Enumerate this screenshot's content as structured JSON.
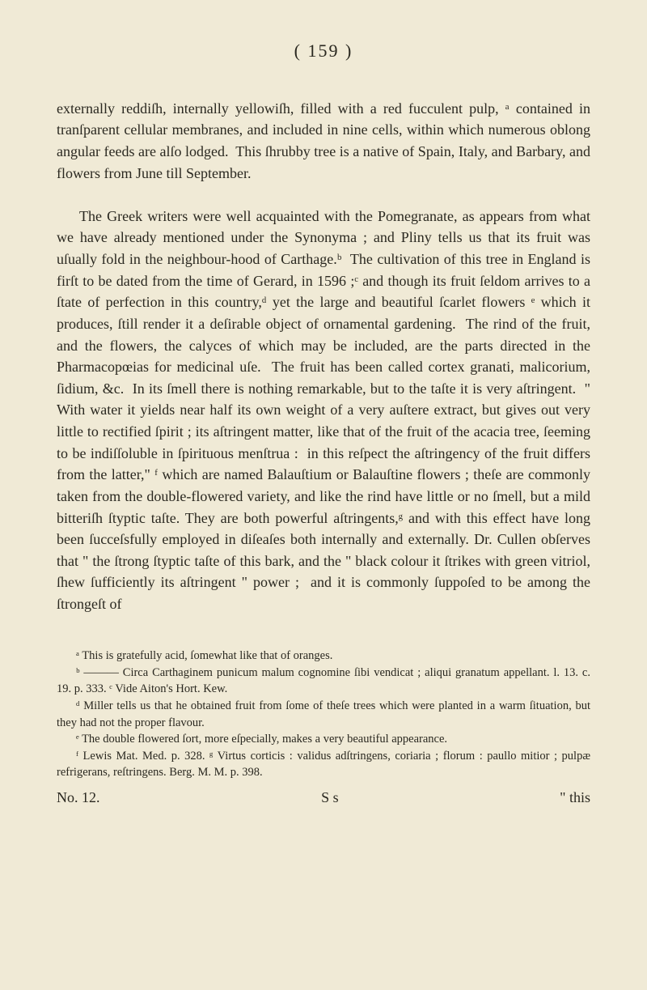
{
  "page_header": "(   159   )",
  "paragraphs": {
    "p1": "externally reddiſh, internally yellowiſh, filled with a red fucculent pulp, ᵃ contained in tranſparent cellular membranes, and included in nine cells, within which numerous oblong angular feeds are alſo lodged.  This ſhrubby tree is a native of Spain, Italy, and Barbary, and flowers from June till September.",
    "p2": "The Greek writers were well acquainted with the Pomegranate, as appears from what we have already mentioned under the Synonyma ; and Pliny tells us that its fruit was uſually fold in the neighbour-hood of Carthage.ᵇ  The cultivation of this tree in England is firſt to be dated from the time of Gerard, in 1596 ;ᶜ and though its fruit ſeldom arrives to a ſtate of perfection in this country,ᵈ yet the large and beautiful ſcarlet flowers ᵉ which it produces, ſtill render it a deſirable object of ornamental gardening.  The rind of the fruit, and the flowers, the calyces of which may be included, are the parts directed in the Pharmacopœias for medicinal uſe.  The fruit has been called cortex granati, malicorium, ſidium, &c.  In its ſmell there is nothing remarkable, but to the taſte it is very aſtringent.  \" With water it yields near half its own weight of a very auſtere extract, but gives out very little to rectified ſpirit ; its aſtringent matter, like that of the fruit of the acacia tree, ſeeming to be indiſſoluble in ſpirituous menſtrua :  in this reſpect the aſtringency of the fruit differs from the latter,\" ᶠ which are named Balauſtium or Balauſtine flowers ; theſe are commonly taken from the double-flowered variety, and like the rind have little or no ſmell, but a mild bitteriſh ſtyptic taſte. They are both powerful aſtringents,ᵍ and with this effect have long been ſucceſsfully employed in diſeaſes both internally and externally. Dr. Cullen obſerves that \" the ſtrong ſtyptic taſte of this bark, and the \" black colour it ſtrikes with green vitriol, ſhew ſufficiently its aſtringent \" power ;  and it is commonly ſuppoſed to be among the ſtrongeſt of"
  },
  "footnotes": {
    "fa": "ᵃ  This is gratefully acid, ſomewhat like that of oranges.",
    "fb": "ᵇ ——— Circa Carthaginem punicum malum cognomine ſibi vendicat ; aliqui granatum appellant.   l. 13. c. 19.  p. 333.               ᶜ Vide Aiton's Hort. Kew.",
    "fd": "ᵈ  Miller tells us that he obtained fruit from ſome of theſe trees which were planted in a warm ſituation, but they had not the proper flavour.",
    "fe": "ᵉ  The double flowered ſort, more eſpecially, makes a very beautiful appearance.",
    "ff": "ᶠ  Lewis Mat. Med. p. 328.   ᵍ Virtus corticis :  validus adſtringens, coriaria ; florum : paullo mitior ;  pulpæ refrigerans, reſtringens.   Berg. M. M.  p. 398."
  },
  "footer": {
    "left": "No.  12.",
    "center": "S  s",
    "right": "\"  this"
  }
}
